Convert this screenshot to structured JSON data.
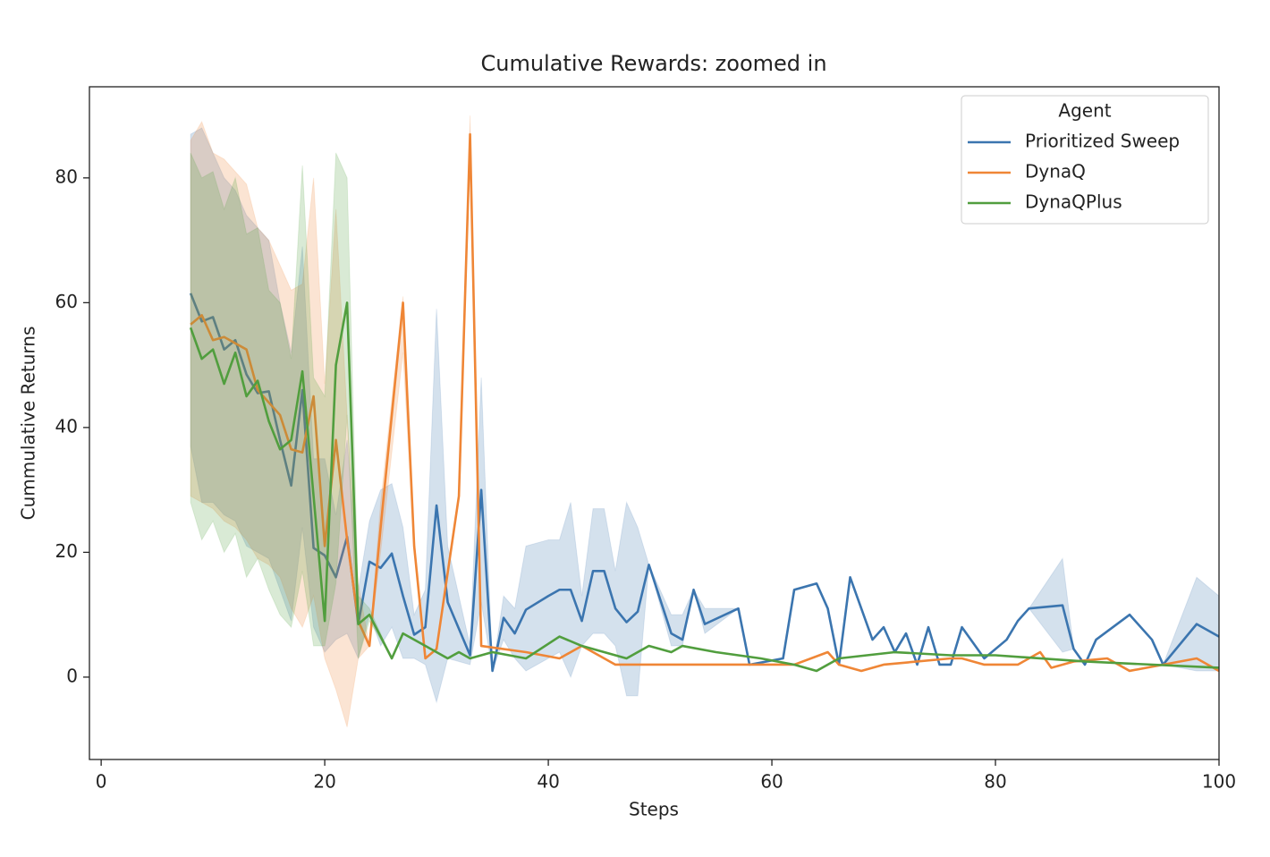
{
  "chart_data": {
    "type": "line",
    "title": "Cumulative Rewards: zoomed in",
    "x_label": "Steps",
    "y_label": "Cummulative Returns",
    "xlim": [
      -1.05,
      100
    ],
    "ylim": [
      -13.2,
      94.6
    ],
    "xticks": [
      0,
      20,
      40,
      60,
      80,
      100
    ],
    "yticks": [
      0,
      20,
      40,
      60,
      80
    ],
    "grid": false,
    "legend_title": "Agent",
    "legend_position": "upper right",
    "series": [
      {
        "name": "Prioritized Sweep",
        "color": "#3b75af",
        "x": [
          8,
          9,
          10,
          11,
          12,
          13,
          14,
          15,
          16,
          17,
          18,
          19,
          20,
          21,
          22,
          23,
          24,
          25,
          26,
          27,
          28,
          29,
          30,
          31,
          33,
          34,
          35,
          36,
          37,
          38,
          40,
          41,
          42,
          43,
          44,
          45,
          46,
          47,
          48,
          49,
          51,
          52,
          53,
          54,
          57,
          58,
          61,
          62,
          64,
          65,
          66,
          67,
          69,
          70,
          71,
          72,
          73,
          74,
          75,
          76,
          77,
          79,
          81,
          82,
          83,
          86,
          87,
          88,
          89,
          92,
          94,
          95,
          98,
          100
        ],
        "values": [
          61.5,
          57,
          57.7,
          52.5,
          54,
          48.5,
          45.5,
          45.8,
          38,
          30.7,
          46,
          20.7,
          19.5,
          16,
          22.5,
          8.5,
          18.5,
          17.5,
          19.8,
          13,
          6.8,
          8,
          27.5,
          12,
          3.5,
          30,
          1,
          9.5,
          7,
          10.8,
          13,
          14,
          14,
          9,
          17,
          17,
          11,
          8.8,
          10.5,
          18,
          7,
          6,
          14,
          8.5,
          11,
          2,
          3,
          14,
          15,
          11,
          2,
          16,
          6,
          8,
          4,
          7,
          2,
          8,
          2,
          2,
          8,
          3,
          6,
          9,
          11,
          11.5,
          4.5,
          2,
          6,
          10,
          6,
          2,
          8.5,
          6.5
        ],
        "lower": [
          37,
          28,
          28,
          26,
          25,
          21,
          20,
          19,
          14,
          9,
          24,
          8,
          4,
          6,
          7,
          3,
          10,
          5,
          8,
          3,
          3,
          2,
          -4,
          3,
          2,
          12,
          1,
          6,
          3,
          1,
          3,
          4,
          0,
          5,
          7,
          7,
          5,
          -3,
          -3,
          18,
          5,
          5,
          14,
          7,
          11,
          2,
          3,
          14,
          15,
          11,
          2,
          16,
          6,
          8,
          4,
          7,
          2,
          8,
          2,
          2,
          8,
          3,
          6,
          9,
          11,
          4,
          4.5,
          2,
          6,
          10,
          6,
          2,
          1,
          1
        ],
        "upper": [
          87,
          88,
          84,
          80,
          78,
          74,
          72,
          70,
          60,
          52,
          69,
          35,
          35,
          26,
          38,
          14,
          25,
          30,
          31,
          24,
          10,
          14,
          59,
          21,
          5,
          48,
          1,
          13,
          11,
          21,
          22,
          22,
          28,
          13,
          27,
          27,
          17,
          28,
          24,
          18,
          10,
          10,
          14,
          11,
          11,
          2,
          3,
          14,
          15,
          11,
          2,
          16,
          6,
          8,
          4,
          7,
          2,
          8,
          2,
          2,
          8,
          3,
          6,
          9,
          11,
          19,
          4.5,
          2,
          6,
          10,
          6,
          2,
          16,
          13
        ]
      },
      {
        "name": "DynaQ",
        "color": "#ef8636",
        "x": [
          8,
          9,
          10,
          11,
          12,
          13,
          14,
          15,
          16,
          17,
          18,
          19,
          20,
          21,
          22,
          23,
          24,
          25,
          27,
          28,
          29,
          30,
          32,
          33,
          34,
          38,
          41,
          43,
          46,
          62,
          65,
          66,
          68,
          70,
          76,
          77,
          79,
          82,
          84,
          85,
          87,
          90,
          92,
          95,
          98,
          100
        ],
        "values": [
          56.5,
          58,
          54,
          54.5,
          53.5,
          52.5,
          46,
          44,
          42,
          36.5,
          36,
          45,
          21,
          38,
          22,
          9,
          5,
          24,
          60,
          21,
          3,
          4.5,
          29,
          87,
          5,
          4,
          3,
          5,
          2,
          2,
          4,
          2,
          1,
          2,
          3,
          3,
          2,
          2,
          4,
          1.5,
          2.5,
          3,
          1,
          2,
          3,
          1
        ],
        "lower": [
          29,
          28,
          27,
          25,
          24,
          22,
          19,
          18,
          16,
          11,
          8,
          13,
          3,
          -2,
          -8,
          3,
          5,
          20,
          52,
          20,
          3,
          4.5,
          29,
          85,
          5,
          4,
          3,
          5,
          2,
          2,
          4,
          2,
          1,
          2,
          3,
          3,
          2,
          2,
          4,
          1.5,
          2.5,
          3,
          1,
          2,
          3,
          1
        ],
        "upper": [
          86,
          89,
          84,
          83,
          81,
          79,
          72,
          70,
          66,
          62,
          63,
          80,
          47,
          75,
          42,
          15,
          5,
          28,
          61,
          22,
          3,
          4.5,
          29,
          90,
          5,
          4,
          3,
          5,
          2,
          2,
          4,
          2,
          1,
          2,
          3,
          3,
          2,
          2,
          4,
          1.5,
          2.5,
          3,
          1,
          2,
          3,
          1
        ]
      },
      {
        "name": "DynaQPlus",
        "color": "#519e3e",
        "x": [
          8,
          9,
          10,
          11,
          12,
          13,
          14,
          15,
          16,
          17,
          18,
          19,
          20,
          21,
          22,
          23,
          24,
          26,
          27,
          29,
          31,
          32,
          33,
          35,
          38,
          41,
          43,
          47,
          49,
          51,
          52,
          55,
          59,
          62,
          64,
          66,
          71,
          76,
          80,
          88,
          100
        ],
        "values": [
          56,
          51,
          52.5,
          47,
          52,
          45,
          47.5,
          41,
          36.5,
          38,
          49,
          29,
          9,
          50,
          60,
          8.5,
          10,
          3,
          7,
          5,
          3,
          4,
          3,
          4,
          3,
          6.5,
          5,
          3,
          5,
          4,
          5,
          4,
          3,
          2,
          1,
          3,
          4,
          3.5,
          3.5,
          2.5,
          1.5
        ],
        "lower": [
          28,
          22,
          25,
          20,
          23,
          16,
          19,
          14,
          10,
          8,
          17,
          5,
          5,
          15,
          42,
          3,
          9,
          3,
          7,
          5,
          3,
          4,
          3,
          4,
          3,
          6.5,
          5,
          3,
          5,
          4,
          5,
          4,
          3,
          2,
          1,
          3,
          4,
          3.5,
          3.5,
          2.5,
          1.5
        ],
        "upper": [
          84,
          80,
          81,
          75,
          80,
          71,
          72,
          62,
          60,
          51,
          82,
          48,
          45,
          84,
          80,
          13,
          11,
          3,
          7,
          5,
          3,
          4,
          3,
          4,
          3,
          6.5,
          5,
          3,
          5,
          4,
          5,
          4,
          3,
          2,
          1,
          3,
          4,
          3.5,
          3.5,
          2.5,
          1.5
        ]
      }
    ]
  }
}
